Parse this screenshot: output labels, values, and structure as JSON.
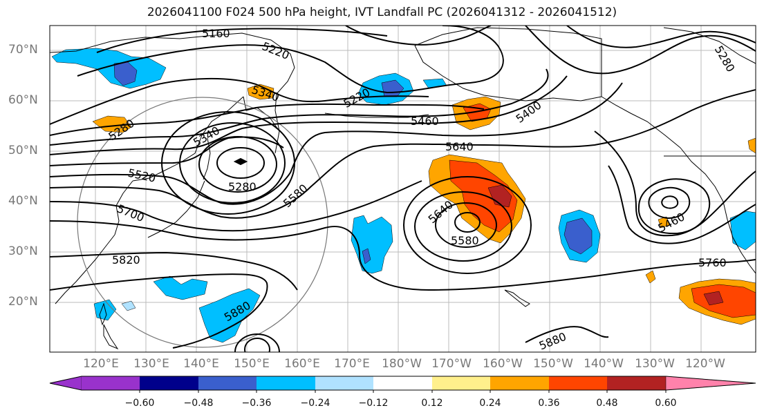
{
  "title": "2026041100 F024 500 hPa height, IVT Landfall PC (2026041312 - 2026041512)",
  "latitude_labels": [
    "70°N",
    "60°N",
    "50°N",
    "40°N",
    "30°N",
    "20°N"
  ],
  "longitude_labels": [
    "120°E",
    "130°E",
    "140°E",
    "150°E",
    "160°E",
    "170°E",
    "180°W",
    "170°W",
    "160°W",
    "150°W",
    "140°W",
    "130°W",
    "120°W"
  ],
  "contour_labels": [
    "5160",
    "5220",
    "5340",
    "5220",
    "5400",
    "5460",
    "5280",
    "5340",
    "5640",
    "5520",
    "5280",
    "5580",
    "5700",
    "5640",
    "5580",
    "5820",
    "5880",
    "5460",
    "5760",
    "5880",
    "5280"
  ],
  "colorbar": {
    "tick_labels": [
      "−0.60",
      "−0.48",
      "−0.36",
      "−0.24",
      "−0.12",
      "0.12",
      "0.24",
      "0.36",
      "0.48",
      "0.60"
    ],
    "colors": [
      "#9932cc",
      "#00008b",
      "#3a5fcd",
      "#00bfff",
      "#b0e2ff",
      "#ffffff",
      "#fff08c",
      "#ffa500",
      "#ff4500",
      "#b22222",
      "#ff82ab"
    ]
  },
  "shading": {
    "neg_1": "#00bfff",
    "neg_2": "#3a5fcd",
    "neg_3": "#b0e2ff",
    "pos_1": "#ffa500",
    "pos_2": "#ff4500",
    "pos_3": "#b22222",
    "pos_4": "#fff08c"
  }
}
